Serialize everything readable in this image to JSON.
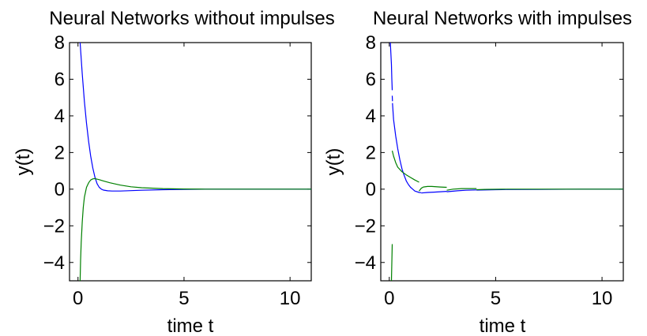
{
  "chart_data": [
    {
      "type": "line",
      "title": "Neural Networks without impulses",
      "xlabel": "time t",
      "ylabel": "y(t)",
      "xlim": [
        -0.4,
        11
      ],
      "ylim": [
        -5,
        8
      ],
      "xticks": [
        0,
        5,
        10
      ],
      "yticks": [
        -4,
        -2,
        0,
        2,
        4,
        6,
        8
      ],
      "grid": false,
      "series": [
        {
          "color": "#0000ff",
          "points": [
            [
              0.1,
              8.0
            ],
            [
              0.2,
              6.3
            ],
            [
              0.3,
              4.8
            ],
            [
              0.4,
              3.6
            ],
            [
              0.5,
              2.6
            ],
            [
              0.6,
              1.8
            ],
            [
              0.7,
              1.15
            ],
            [
              0.8,
              0.65
            ],
            [
              0.9,
              0.3
            ],
            [
              1.0,
              0.1
            ],
            [
              1.1,
              0.0
            ],
            [
              1.2,
              -0.05
            ],
            [
              1.4,
              -0.09
            ],
            [
              1.6,
              -0.1
            ],
            [
              1.8,
              -0.1
            ],
            [
              2.0,
              -0.1
            ],
            [
              2.5,
              -0.08
            ],
            [
              3,
              -0.06
            ],
            [
              4,
              -0.03
            ],
            [
              5,
              -0.01
            ],
            [
              6,
              0.0
            ],
            [
              8,
              0.0
            ],
            [
              11,
              0.0
            ]
          ]
        },
        {
          "color": "#008000",
          "points": [
            [
              0.1,
              -5.0
            ],
            [
              0.12,
              -3.9
            ],
            [
              0.15,
              -2.9
            ],
            [
              0.2,
              -1.8
            ],
            [
              0.25,
              -1.0
            ],
            [
              0.3,
              -0.45
            ],
            [
              0.4,
              0.1
            ],
            [
              0.5,
              0.35
            ],
            [
              0.6,
              0.5
            ],
            [
              0.7,
              0.56
            ],
            [
              0.8,
              0.58
            ],
            [
              1.0,
              0.52
            ],
            [
              1.2,
              0.45
            ],
            [
              1.5,
              0.35
            ],
            [
              2.0,
              0.22
            ],
            [
              2.5,
              0.13
            ],
            [
              3,
              0.08
            ],
            [
              4,
              0.03
            ],
            [
              5,
              0.01
            ],
            [
              6,
              0.0
            ],
            [
              8,
              0.0
            ],
            [
              11,
              0.0
            ]
          ]
        }
      ]
    },
    {
      "type": "line",
      "title": "Neural Networks with impulses",
      "xlabel": "time t",
      "ylabel": "y(t)",
      "xlim": [
        -0.4,
        11
      ],
      "ylim": [
        -5,
        8
      ],
      "xticks": [
        0,
        5,
        10
      ],
      "yticks": [
        -4,
        -2,
        0,
        2,
        4,
        6,
        8
      ],
      "grid": false,
      "series": [
        {
          "color": "#0000ff",
          "segments": [
            [
              [
                0.05,
                8.0
              ],
              [
                0.1,
                6.8
              ],
              [
                0.12,
                6.0
              ],
              [
                0.14,
                5.4
              ]
            ],
            [
              [
                0.14,
                5.1
              ],
              [
                0.15,
                4.8
              ]
            ],
            [
              [
                0.15,
                4.7
              ],
              [
                0.2,
                3.8
              ],
              [
                0.3,
                2.9
              ],
              [
                0.4,
                2.2
              ],
              [
                0.5,
                1.6
              ],
              [
                0.6,
                1.1
              ],
              [
                0.7,
                0.75
              ],
              [
                0.8,
                0.45
              ],
              [
                0.9,
                0.25
              ],
              [
                1.0,
                0.1
              ],
              [
                1.1,
                0.0
              ],
              [
                1.2,
                -0.1
              ],
              [
                1.4,
                -0.18
              ],
              [
                1.5,
                -0.19
              ]
            ],
            [
              [
                1.5,
                -0.21
              ],
              [
                1.8,
                -0.18
              ],
              [
                2.1,
                -0.16
              ],
              [
                2.4,
                -0.14
              ],
              [
                2.7,
                -0.12
              ]
            ],
            [
              [
                2.7,
                -0.14
              ],
              [
                3.2,
                -0.09
              ],
              [
                3.6,
                -0.06
              ],
              [
                4.1,
                -0.04
              ]
            ],
            [
              [
                4.1,
                -0.05
              ],
              [
                5,
                -0.03
              ],
              [
                5.5,
                -0.02
              ]
            ],
            [
              [
                5.5,
                -0.02
              ],
              [
                7,
                -0.01
              ],
              [
                9,
                0.0
              ],
              [
                11,
                0.0
              ]
            ]
          ]
        },
        {
          "color": "#008000",
          "segments": [
            [
              [
                0.1,
                -5.0
              ],
              [
                0.12,
                -4.0
              ],
              [
                0.14,
                -3.0
              ]
            ],
            [
              [
                0.14,
                2.1
              ],
              [
                0.2,
                1.8
              ],
              [
                0.3,
                1.45
              ],
              [
                0.4,
                1.2
              ],
              [
                0.6,
                0.95
              ],
              [
                0.8,
                0.78
              ],
              [
                1.0,
                0.64
              ],
              [
                1.2,
                0.5
              ],
              [
                1.4,
                0.38
              ]
            ],
            [
              [
                1.4,
                -0.1
              ],
              [
                1.5,
                0.05
              ],
              [
                1.6,
                0.12
              ],
              [
                1.8,
                0.15
              ],
              [
                2.0,
                0.15
              ],
              [
                2.4,
                0.12
              ],
              [
                2.7,
                0.1
              ]
            ],
            [
              [
                2.7,
                -0.06
              ],
              [
                3.0,
                0.0
              ],
              [
                3.4,
                0.03
              ],
              [
                4.1,
                0.03
              ]
            ],
            [
              [
                4.1,
                -0.03
              ],
              [
                4.5,
                -0.01
              ],
              [
                5.5,
                0.0
              ]
            ],
            [
              [
                5.5,
                0.0
              ],
              [
                7,
                0.0
              ],
              [
                9,
                0.0
              ],
              [
                11,
                0.0
              ]
            ]
          ]
        }
      ]
    }
  ]
}
